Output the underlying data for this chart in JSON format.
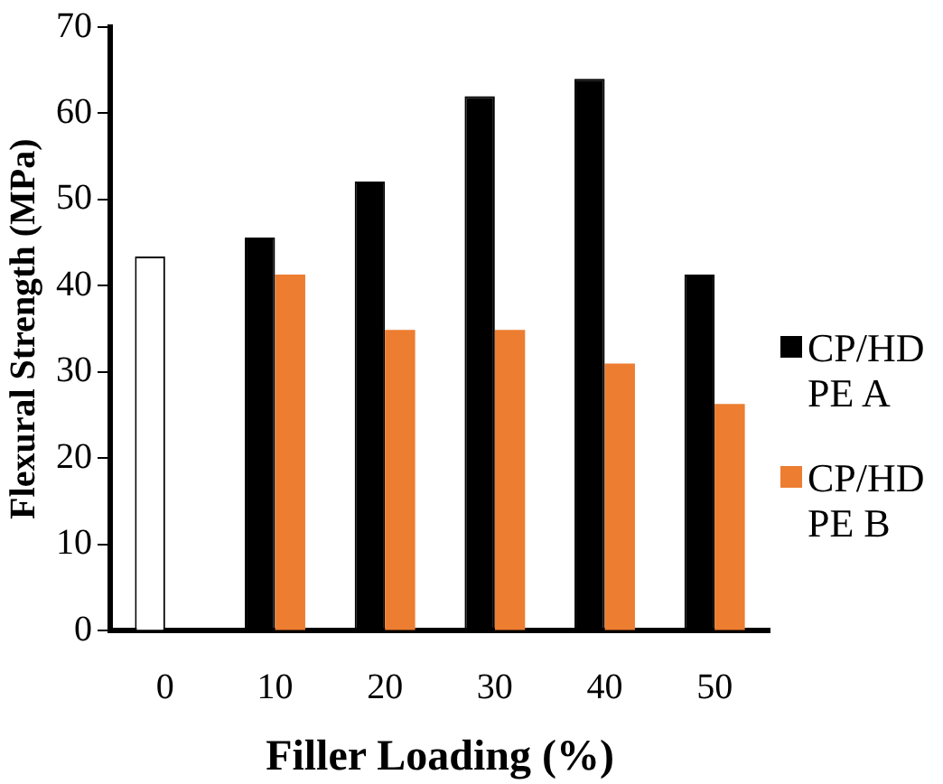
{
  "chart_data": {
    "type": "bar",
    "xlabel": "Filler Loading (%)",
    "ylabel": "Flexural Strength (MPa)",
    "categories": [
      "0",
      "10",
      "20",
      "30",
      "40",
      "50"
    ],
    "series": [
      {
        "name": "CP/HDPE A",
        "color": "#000000",
        "colors": [
          "#ffffff",
          "#000000",
          "#000000",
          "#000000",
          "#000000",
          "#000000"
        ],
        "values": [
          43.4,
          45.6,
          52.1,
          62.0,
          64.0,
          41.3
        ]
      },
      {
        "name": "CP/HDPE B",
        "color": "#ed7d31",
        "values": [
          null,
          41.3,
          34.9,
          34.9,
          31.0,
          26.3
        ]
      }
    ],
    "ylim": [
      0,
      70
    ],
    "yticks": [
      0,
      10,
      20,
      30,
      40,
      50,
      60,
      70
    ],
    "grid": false,
    "legend": "right"
  }
}
